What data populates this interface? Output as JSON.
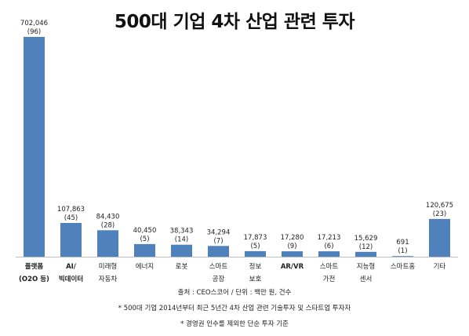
{
  "chart_data": {
    "type": "bar",
    "title": "500대 기업 4차 산업 관련 투자",
    "categories": [
      [
        "플랫폼",
        "(O2O 등)"
      ],
      [
        "AI/",
        "빅데이터"
      ],
      [
        "미래형",
        "자동차"
      ],
      [
        "에너지"
      ],
      [
        "로봇"
      ],
      [
        "스마트",
        "공장"
      ],
      [
        "정보",
        "보호"
      ],
      [
        "AR/VR"
      ],
      [
        "스마트",
        "가전"
      ],
      [
        "지능형",
        "센서"
      ],
      [
        "스마트홈"
      ],
      [
        "기타"
      ]
    ],
    "bold_categories": [
      0,
      1,
      7
    ],
    "values": [
      702046,
      107863,
      84430,
      40450,
      38343,
      34294,
      17873,
      17280,
      17213,
      15629,
      691,
      120675
    ],
    "value_labels": [
      "702,046",
      "107,863",
      "84,430",
      "40,450",
      "38,343",
      "34,294",
      "17,873",
      "17,280",
      "17,213",
      "15,629",
      "691",
      "120,675"
    ],
    "count_labels": [
      "(96)",
      "(45)",
      "(28)",
      "(5)",
      "(14)",
      "(7)",
      "(5)",
      "(9)",
      "(6)",
      "(12)",
      "(1)",
      "(23)"
    ],
    "ylim": [
      0,
      702046
    ],
    "grid": false,
    "legend": "none",
    "bar_color": "#4f81bd"
  },
  "notes": {
    "source": "출처 : CEO스코어 / 단위 : 백만 원, 건수",
    "note1": "* 500대 기업 2014년부터 최근 5년간 4차 산업 관련 기술투자 및 스타트업 투자자",
    "note2": "* 경영권 인수를 제외한 단순 투자 기준"
  }
}
